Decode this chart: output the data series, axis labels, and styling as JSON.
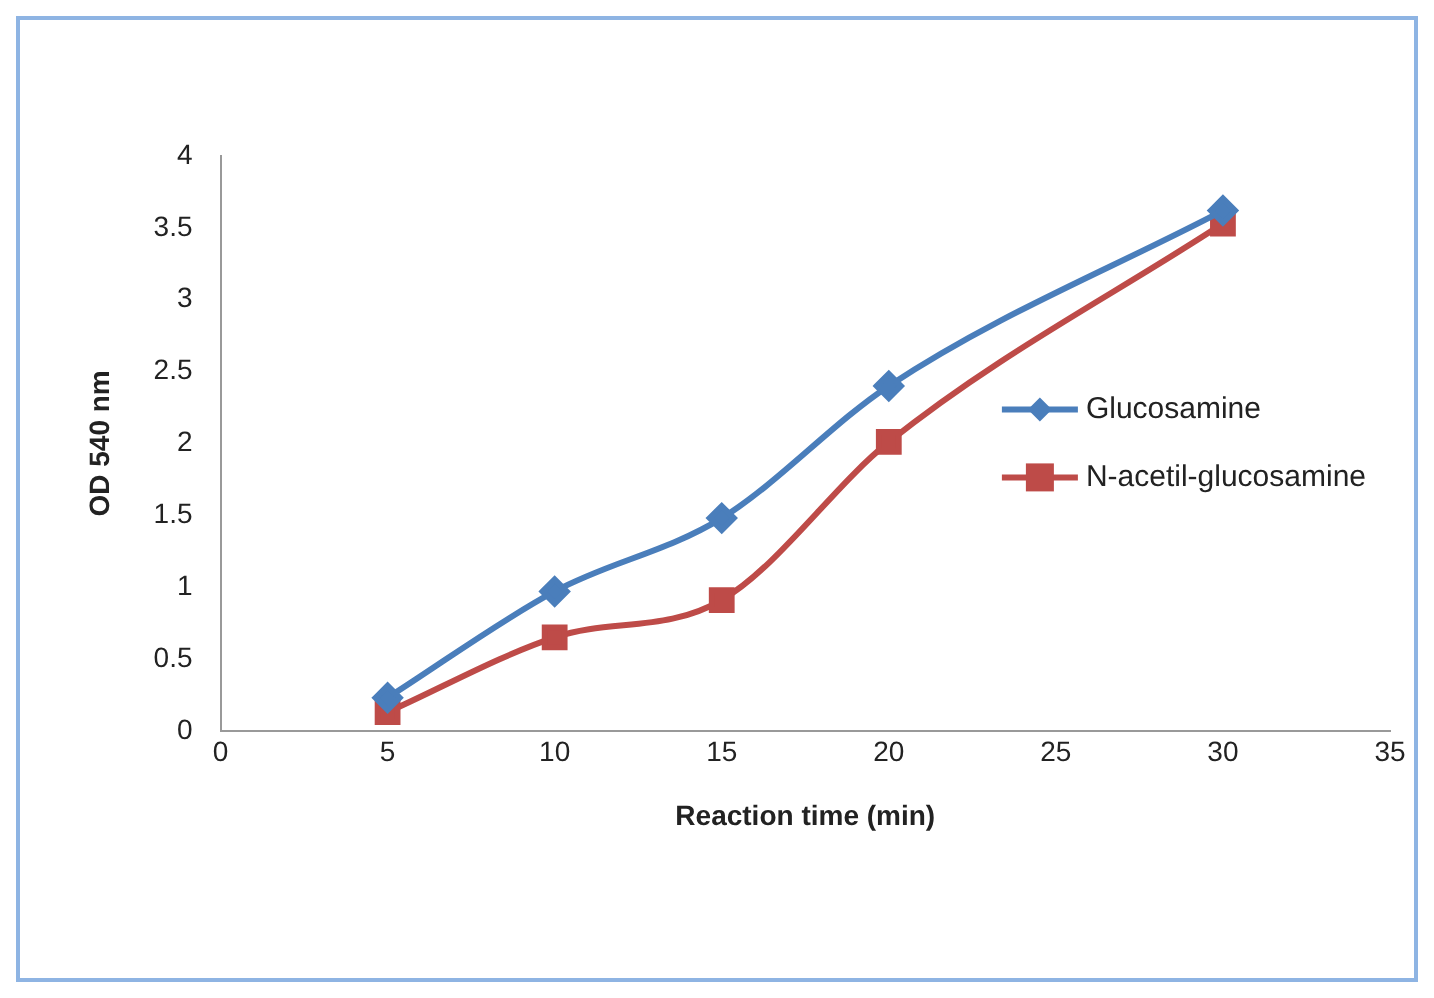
{
  "chart_data": {
    "type": "line",
    "xlabel": "Reaction time (min)",
    "ylabel": "OD 540 nm",
    "x": [
      5,
      10,
      15,
      20,
      30
    ],
    "series": [
      {
        "name": "Glucosamine",
        "color": "#4a7ebb",
        "marker": "diamond",
        "values": [
          0.23,
          0.97,
          1.48,
          2.4,
          3.62
        ]
      },
      {
        "name": "N-acetil-glucosamine",
        "color": "#be4b48",
        "marker": "square",
        "values": [
          0.13,
          0.65,
          0.91,
          2.01,
          3.53
        ]
      }
    ],
    "xlim": [
      0,
      35
    ],
    "xticks": [
      0,
      5,
      10,
      15,
      20,
      25,
      30,
      35
    ],
    "ylim": [
      0,
      4
    ],
    "yticks": [
      0,
      0.5,
      1,
      1.5,
      2,
      2.5,
      3,
      3.5,
      4
    ],
    "grid": false,
    "legend": "right"
  }
}
